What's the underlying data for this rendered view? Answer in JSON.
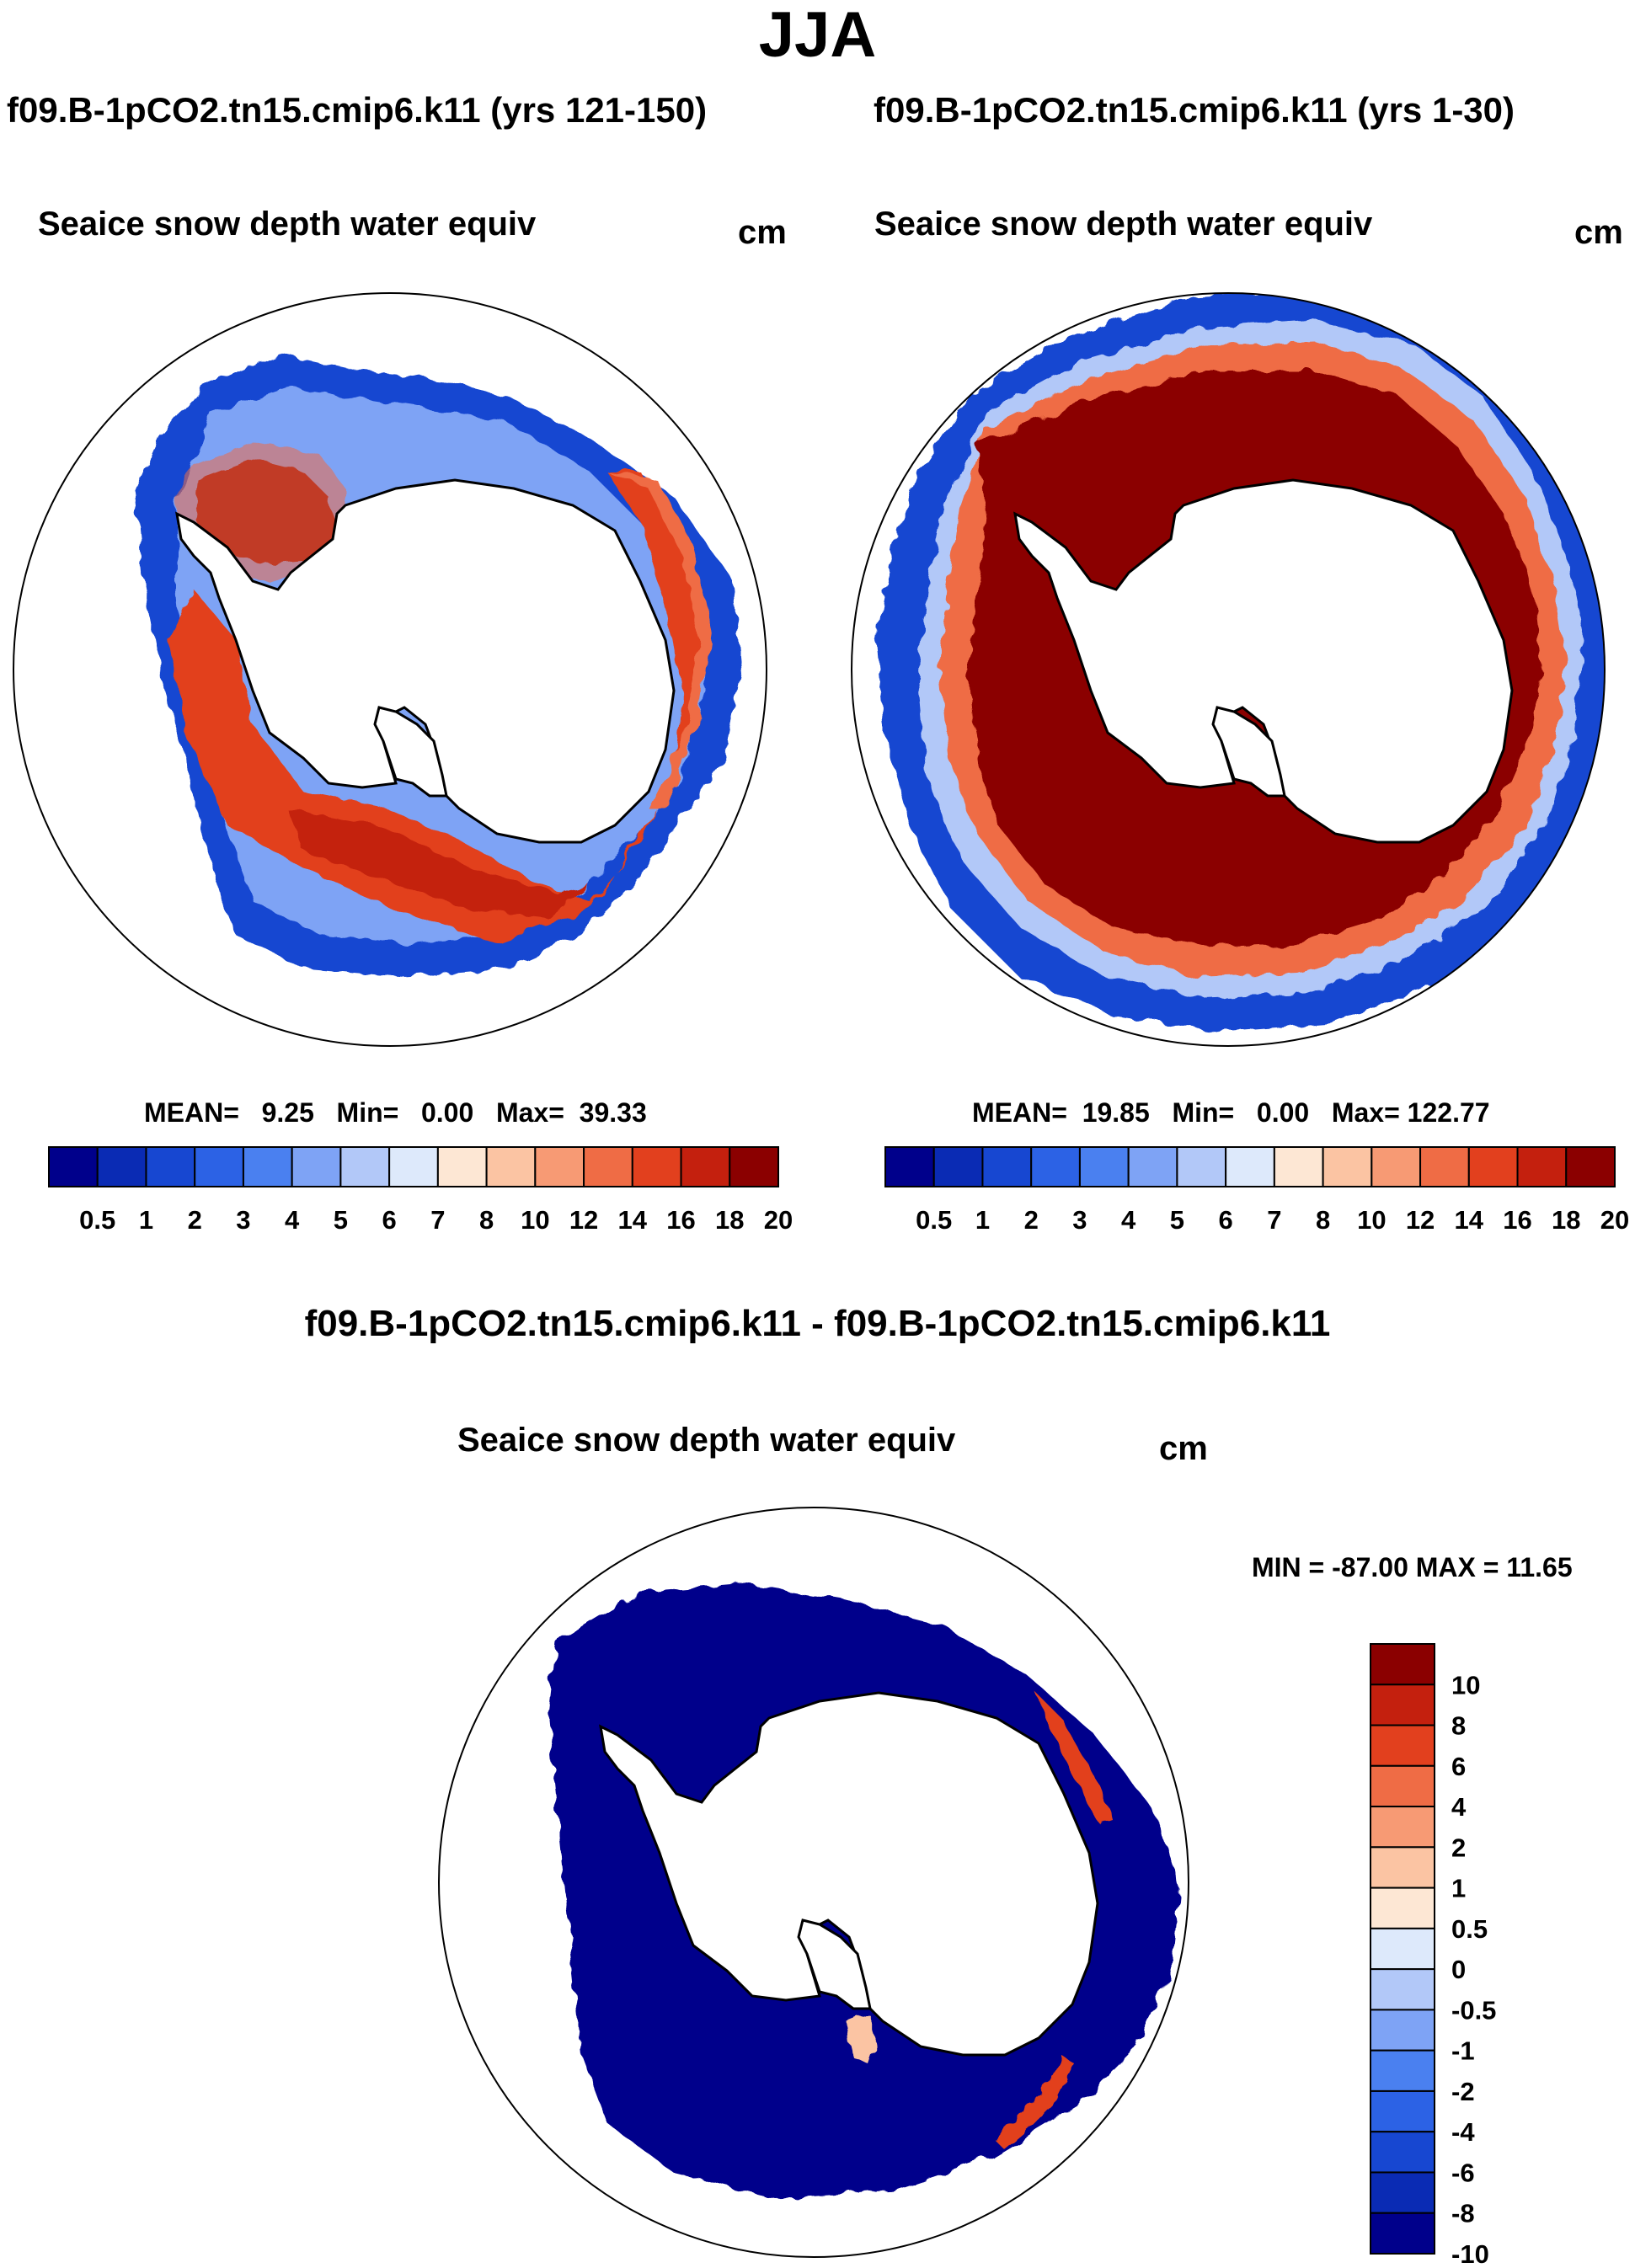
{
  "title": "JJA",
  "panels": [
    {
      "case": "f09.B-1pCO2.tn15.cmip6.k11 (yrs 121-150)",
      "variable": "Seaice snow depth water equiv",
      "units": "cm",
      "stats": {
        "mean_label": "MEAN=",
        "mean": "9.25",
        "min_label": "Min=",
        "min": "0.00",
        "max_label": "Max=",
        "max": "39.33"
      }
    },
    {
      "case": "f09.B-1pCO2.tn15.cmip6.k11 (yrs 1-30)",
      "variable": "Seaice snow depth water equiv",
      "units": "cm",
      "stats": {
        "mean_label": "MEAN=",
        "mean": "19.85",
        "min_label": "Min=",
        "min": "0.00",
        "max_label": "Max=",
        "max": "122.77"
      }
    }
  ],
  "diff_panel": {
    "case": "f09.B-1pCO2.tn15.cmip6.k11 - f09.B-1pCO2.tn15.cmip6.k11",
    "variable": "Seaice snow depth water equiv",
    "units": "cm",
    "stats": {
      "min_label": "MIN =",
      "min": "-87.00",
      "max_label": "MAX =",
      "max": "11.65"
    }
  },
  "colorbar_top": {
    "labels": [
      "0.5",
      "1",
      "2",
      "3",
      "4",
      "5",
      "6",
      "7",
      "8",
      "10",
      "12",
      "14",
      "16",
      "18",
      "20"
    ],
    "colors": [
      "#00008b",
      "#0a2bb4",
      "#1747d1",
      "#2c62e5",
      "#4a80f0",
      "#7ea3f5",
      "#b2c8f8",
      "#dde9fb",
      "#fde7d4",
      "#fbc4a3",
      "#f79a74",
      "#ef6c45",
      "#e2401e",
      "#c4200e",
      "#8b0000"
    ]
  },
  "colorbar_diff": {
    "labels": [
      "10",
      "8",
      "6",
      "4",
      "2",
      "1",
      "0.5",
      "0",
      "-0.5",
      "-1",
      "-2",
      "-4",
      "-6",
      "-8",
      "-10"
    ],
    "colors": [
      "#8b0000",
      "#c4200e",
      "#e2401e",
      "#ef6c45",
      "#f79a74",
      "#fbc4a3",
      "#fde7d4",
      "#dde9fb",
      "#b2c8f8",
      "#7ea3f5",
      "#4a80f0",
      "#2c62e5",
      "#1747d1",
      "#0a2bb4",
      "#00008b"
    ]
  }
}
